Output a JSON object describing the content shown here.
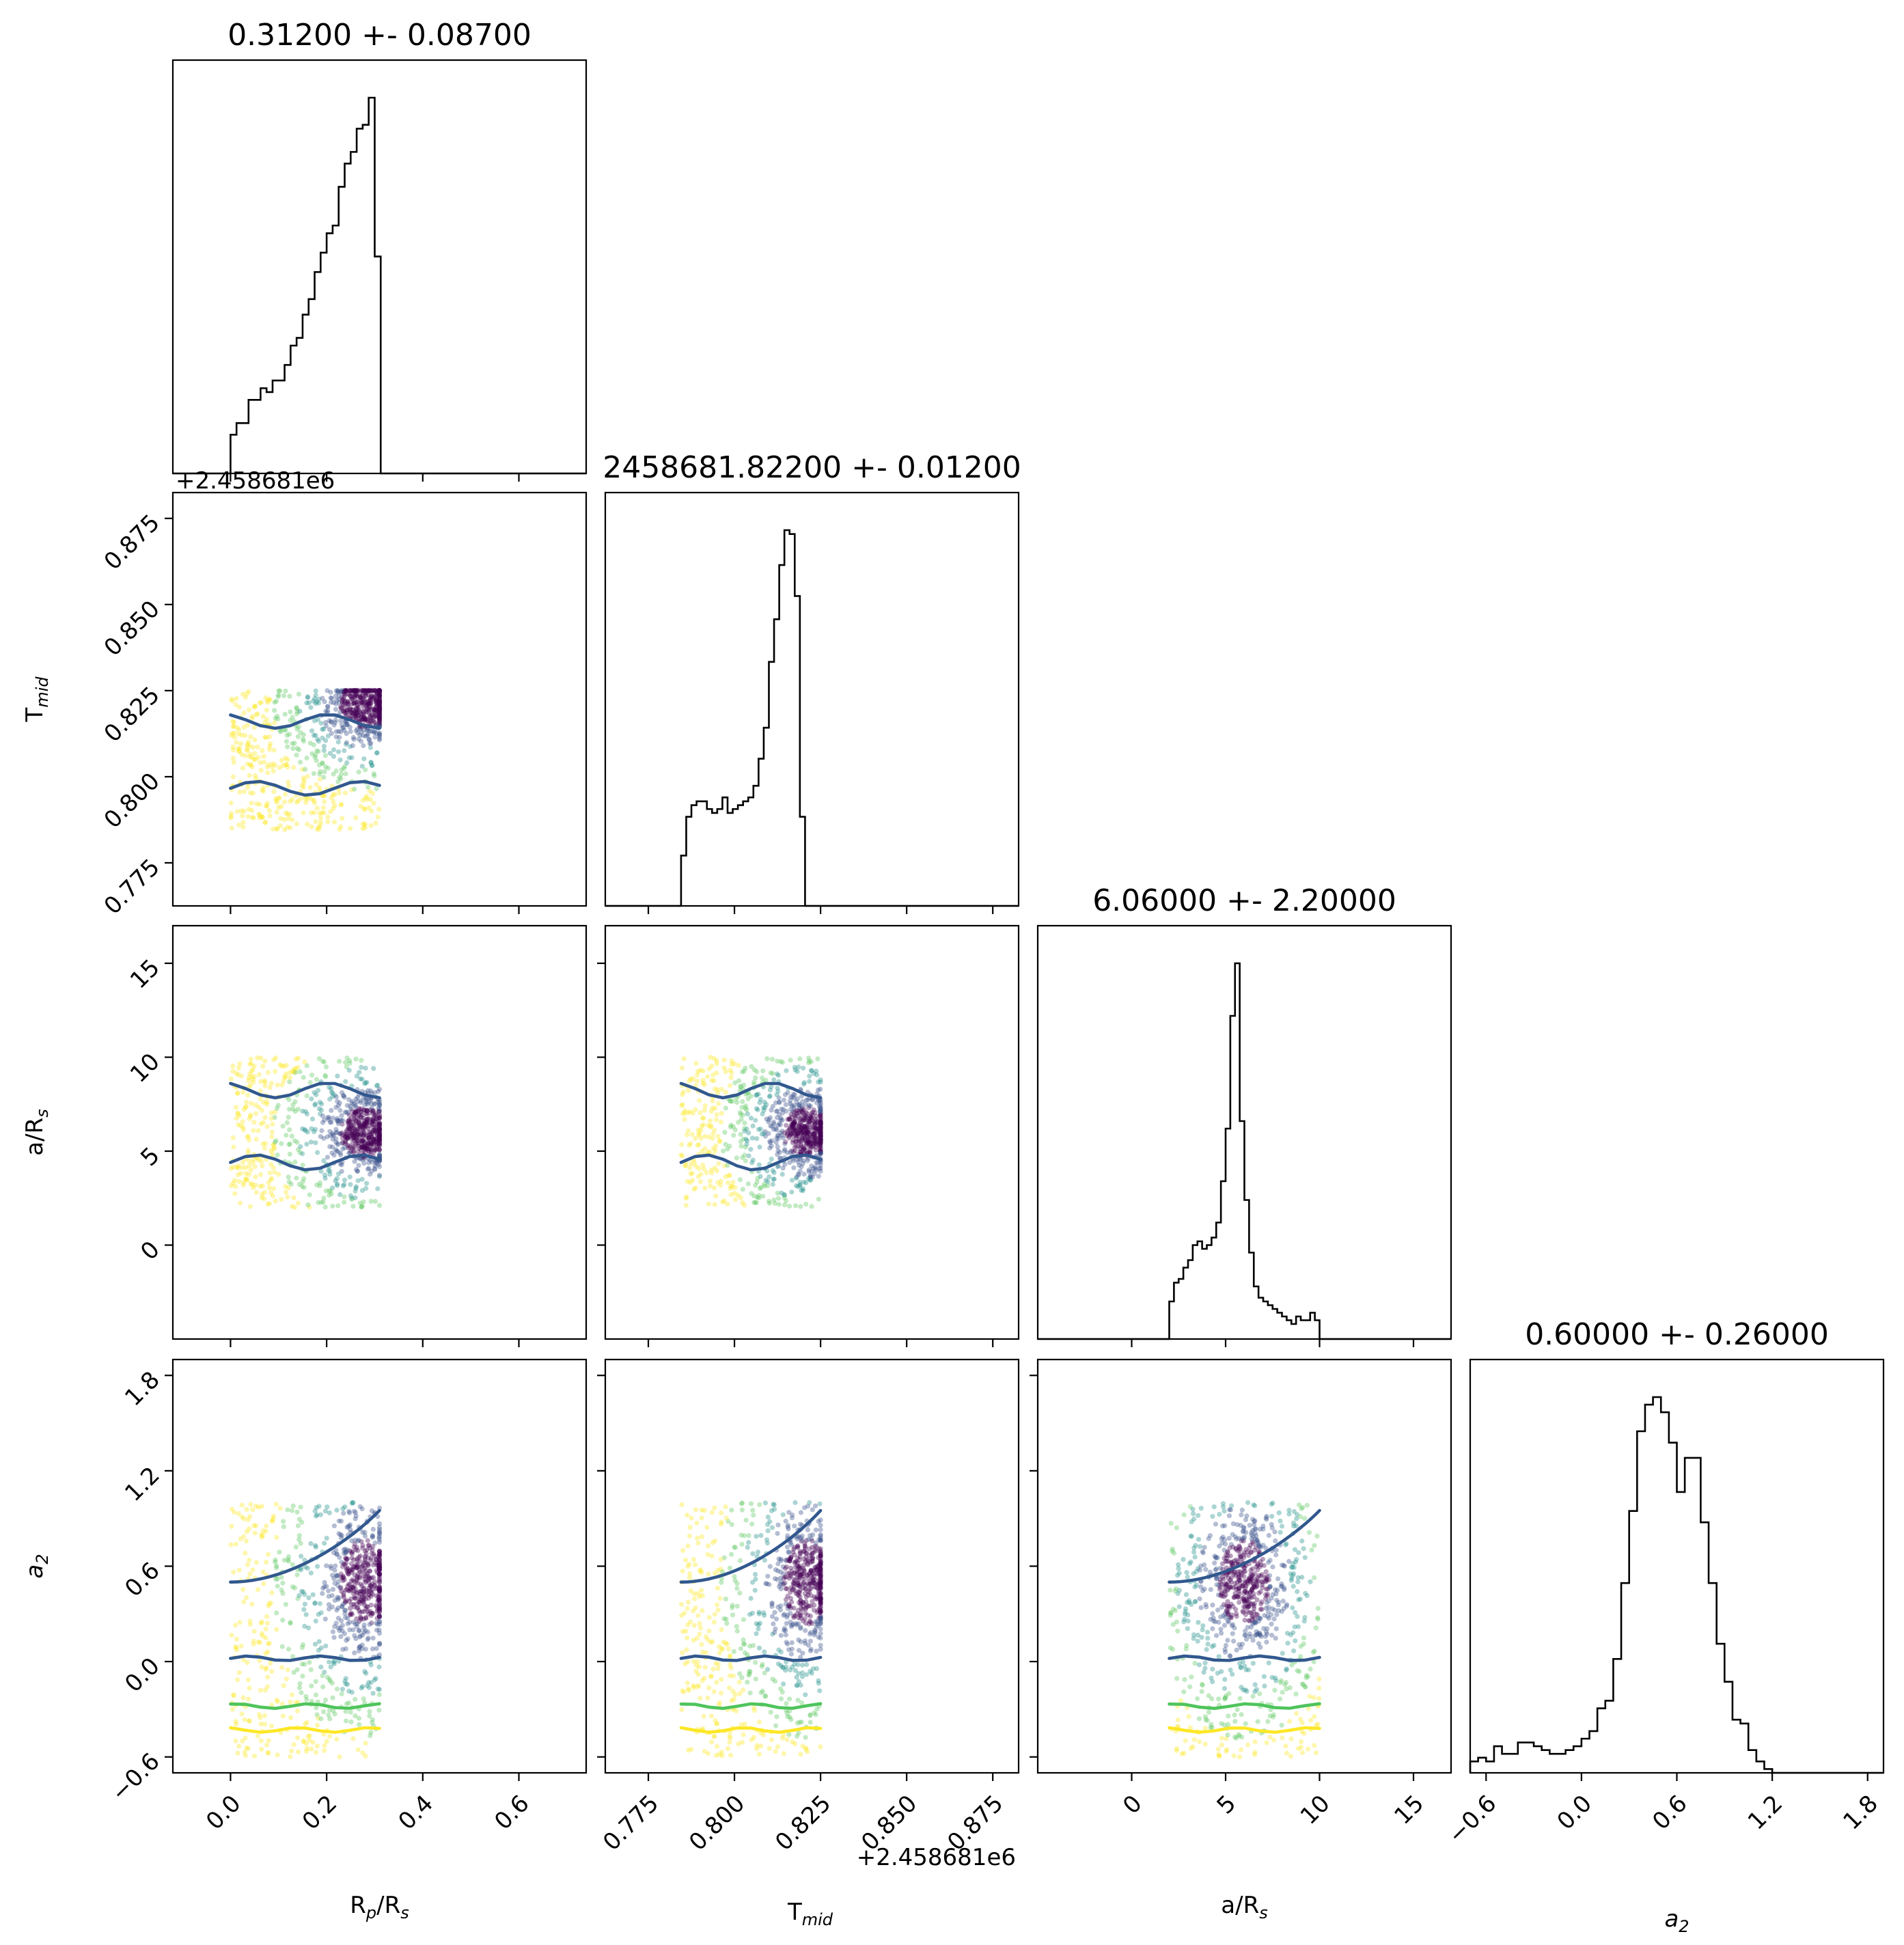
{
  "chart_data": {
    "type": "scatter",
    "kind": "corner-plot",
    "colors": {
      "hist": "#000000",
      "point_colormap": [
        "#440154",
        "#3b528b",
        "#21918c",
        "#5ec962",
        "#fde725"
      ],
      "contour_inner": "#31588e",
      "contour_mid": "#4fc45c",
      "contour_outer": "#fde725"
    },
    "parameters": [
      {
        "key": "rp",
        "label": "R_p/R_s",
        "title": "0.31200 +- 0.08700",
        "range": [
          -0.12,
          0.74
        ],
        "ticks": [
          0.0,
          0.2,
          0.4,
          0.6
        ],
        "tick_labels": [
          "0.0",
          "0.2",
          "0.4",
          "0.6"
        ]
      },
      {
        "key": "tmid",
        "label": "T_mid",
        "title": "2458681.82200 +- 0.01200",
        "range": [
          0.7625,
          0.8825
        ],
        "ticks": [
          0.775,
          0.8,
          0.825,
          0.85,
          0.875
        ],
        "tick_labels": [
          "0.775",
          "0.800",
          "0.825",
          "0.850",
          "0.875"
        ],
        "offset": "+2.458681e6"
      },
      {
        "key": "ars",
        "label": "a/R_s",
        "title": "6.06000 +- 2.20000",
        "range": [
          -5,
          17
        ],
        "ticks": [
          0,
          5,
          10,
          15
        ],
        "tick_labels": [
          "0",
          "5",
          "10",
          "15"
        ],
        "ticks_y": [
          0,
          5,
          10,
          15
        ]
      },
      {
        "key": "a2",
        "label": "a_2",
        "title": "0.60000 +- 0.26000",
        "range": [
          -0.7,
          1.9
        ],
        "ticks": [
          -0.6,
          0.0,
          0.6,
          1.2,
          1.8
        ],
        "tick_labels": [
          "−0.6",
          "0.0",
          "0.6",
          "1.2",
          "1.8"
        ]
      }
    ],
    "axis_labels": {
      "rp": {
        "main": "R",
        "sub": "p",
        "rest": "/R",
        "sub2": "s"
      },
      "tmid": {
        "main": "T",
        "sub": "mid"
      },
      "ars": {
        "main": "a/R",
        "sub": "s"
      },
      "a2": {
        "main": "a",
        "sub": "2"
      }
    },
    "histograms": {
      "rp": {
        "edges_start": 0.0,
        "bin_width": 0.0125,
        "counts": [
          0.1,
          0.13,
          0.13,
          0.19,
          0.19,
          0.22,
          0.21,
          0.24,
          0.24,
          0.28,
          0.33,
          0.35,
          0.41,
          0.45,
          0.52,
          0.57,
          0.62,
          0.64,
          0.74,
          0.8,
          0.83,
          0.89,
          0.9,
          0.97,
          0.56
        ]
      },
      "tmid": {
        "edges_start": 0.7845,
        "bin_width": 0.0015,
        "counts": [
          0.13,
          0.23,
          0.26,
          0.27,
          0.27,
          0.25,
          0.24,
          0.25,
          0.28,
          0.24,
          0.25,
          0.26,
          0.27,
          0.28,
          0.31,
          0.38,
          0.46,
          0.63,
          0.74,
          0.88,
          0.97,
          0.96,
          0.8,
          0.23
        ]
      },
      "ars": {
        "edges_start": 2.0,
        "bin_width": 0.25,
        "counts": [
          0.1,
          0.15,
          0.16,
          0.19,
          0.21,
          0.25,
          0.26,
          0.24,
          0.25,
          0.27,
          0.31,
          0.42,
          0.56,
          0.86,
          1.0,
          0.58,
          0.37,
          0.23,
          0.14,
          0.11,
          0.1,
          0.09,
          0.08,
          0.07,
          0.06,
          0.05,
          0.04,
          0.06,
          0.05,
          0.05,
          0.07,
          0.05
        ]
      },
      "a2": {
        "edges_start": -0.7,
        "bin_width": 0.05,
        "counts": [
          0.03,
          0.04,
          0.03,
          0.07,
          0.05,
          0.05,
          0.08,
          0.08,
          0.07,
          0.06,
          0.05,
          0.05,
          0.06,
          0.07,
          0.09,
          0.11,
          0.17,
          0.19,
          0.3,
          0.5,
          0.69,
          0.9,
          0.97,
          0.99,
          0.95,
          0.87,
          0.74,
          0.83,
          0.83,
          0.66,
          0.5,
          0.34,
          0.24,
          0.14,
          0.13,
          0.06,
          0.03,
          0.01,
          0.0,
          0.0,
          0.0,
          0.0,
          0.0,
          0.0,
          0.0,
          0.0,
          0.0,
          0.0,
          0.0,
          0.0,
          0.0,
          0.0
        ]
      }
    },
    "sample_box": {
      "rp": [
        0.0,
        0.31
      ],
      "tmid": [
        0.7845,
        0.825
      ],
      "ars": [
        2.0,
        10.0
      ],
      "a2": [
        -0.6,
        1.0
      ]
    },
    "mode": {
      "rp": 0.28,
      "tmid": 0.821,
      "ars": 6.0,
      "a2": 0.5
    },
    "grid": false,
    "legend": "none"
  }
}
